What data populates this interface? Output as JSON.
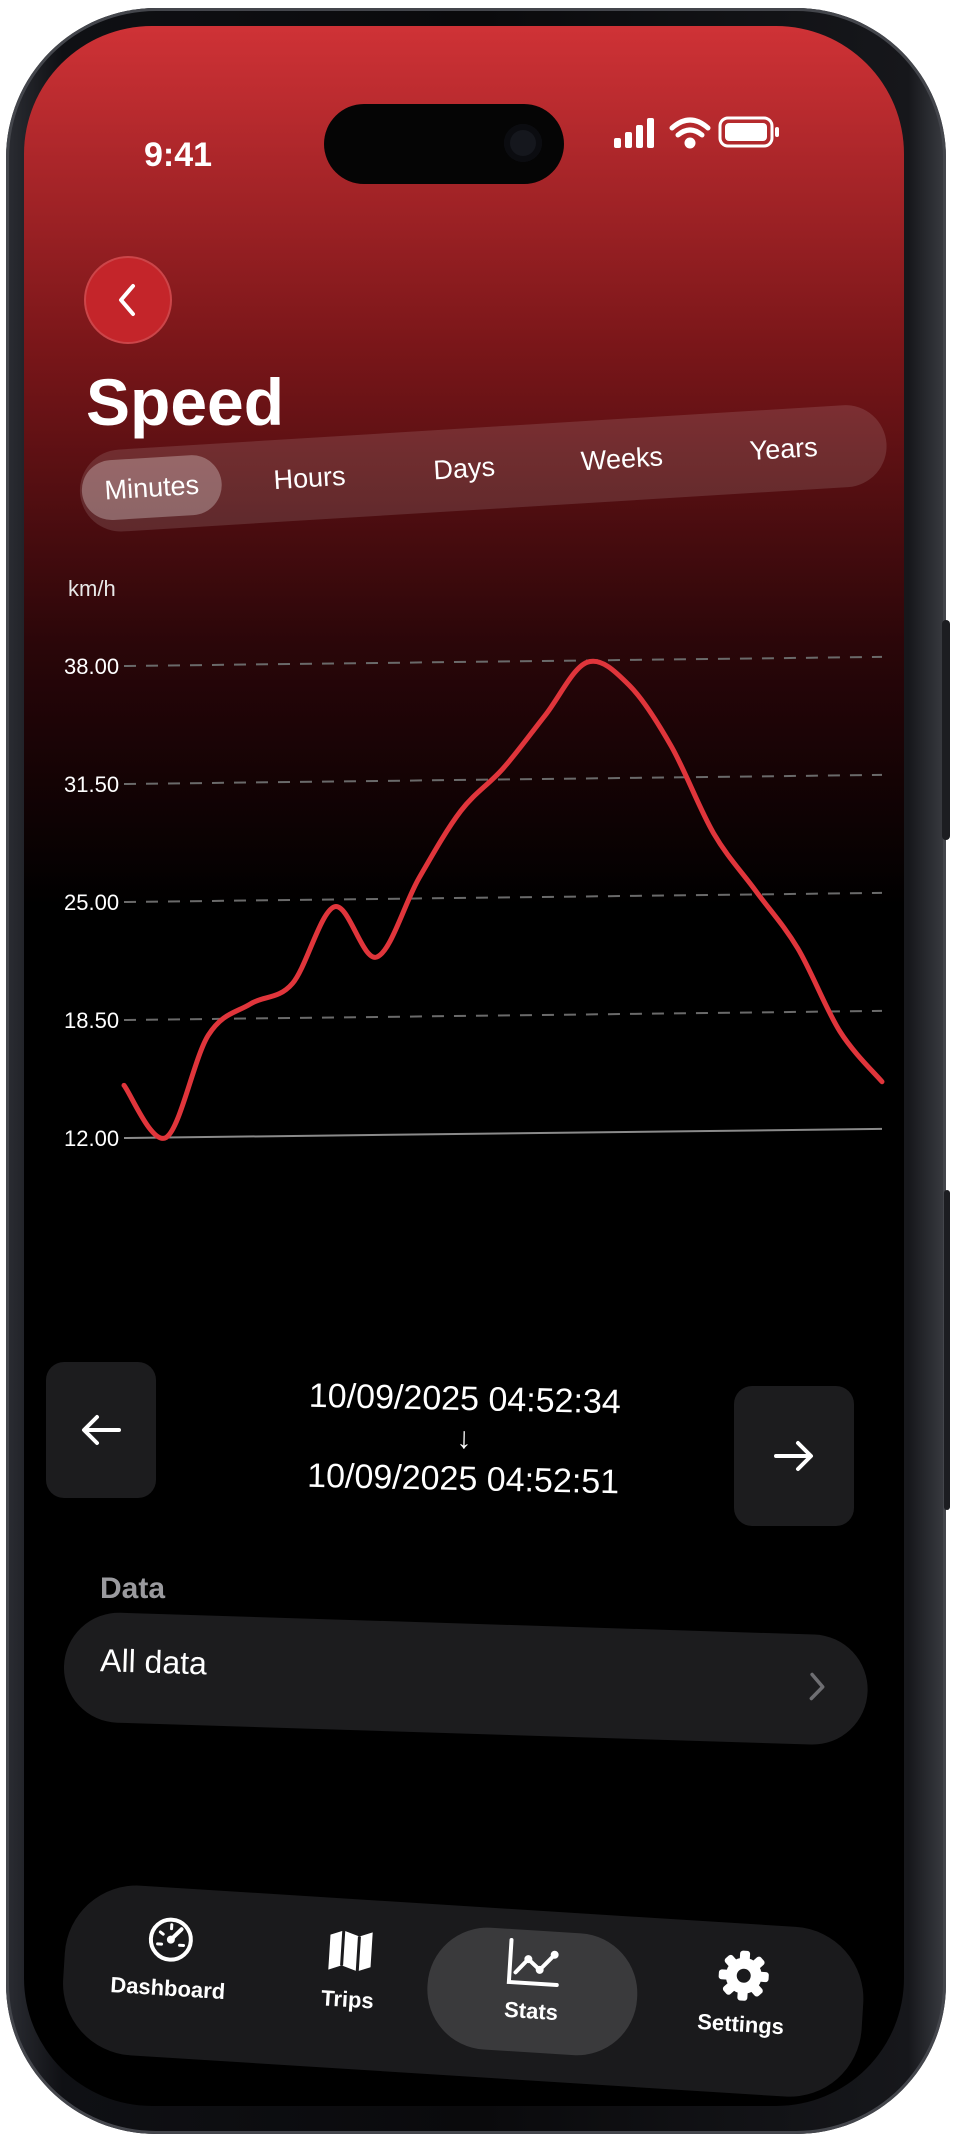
{
  "status": {
    "time": "9:41"
  },
  "header": {
    "title": "Speed"
  },
  "segments": [
    "Minutes",
    "Hours",
    "Days",
    "Weeks",
    "Years"
  ],
  "active_segment": "Minutes",
  "chart_data": {
    "type": "line",
    "ylabel": "km/h",
    "yticks": [
      "38.00",
      "31.50",
      "25.00",
      "18.50",
      "12.00"
    ],
    "ylim": [
      12,
      38
    ],
    "grid": true,
    "line_color": "#e0353b",
    "series": [
      {
        "values": [
          14.9,
          12.0,
          17.6,
          19.3,
          20.4,
          24.6,
          21.8,
          26.1,
          29.8,
          32.1,
          35.0,
          37.9,
          36.6,
          33.2,
          28.4,
          25.2,
          22.0,
          17.4,
          14.6
        ]
      }
    ]
  },
  "range": {
    "start": "10/09/2025 04:52:34",
    "arrow": "↓",
    "end": "10/09/2025 04:52:51"
  },
  "data_section": {
    "label": "Data",
    "value": "All data"
  },
  "tabs": [
    {
      "label": "Dashboard",
      "icon": "gauge-icon"
    },
    {
      "label": "Trips",
      "icon": "map-icon"
    },
    {
      "label": "Stats",
      "icon": "chart-icon"
    },
    {
      "label": "Settings",
      "icon": "gear-icon"
    }
  ],
  "active_tab": "Stats",
  "colors": {
    "accent": "#e0353b",
    "brand_red": "#cf3236",
    "surface": "#1c1c1e"
  }
}
